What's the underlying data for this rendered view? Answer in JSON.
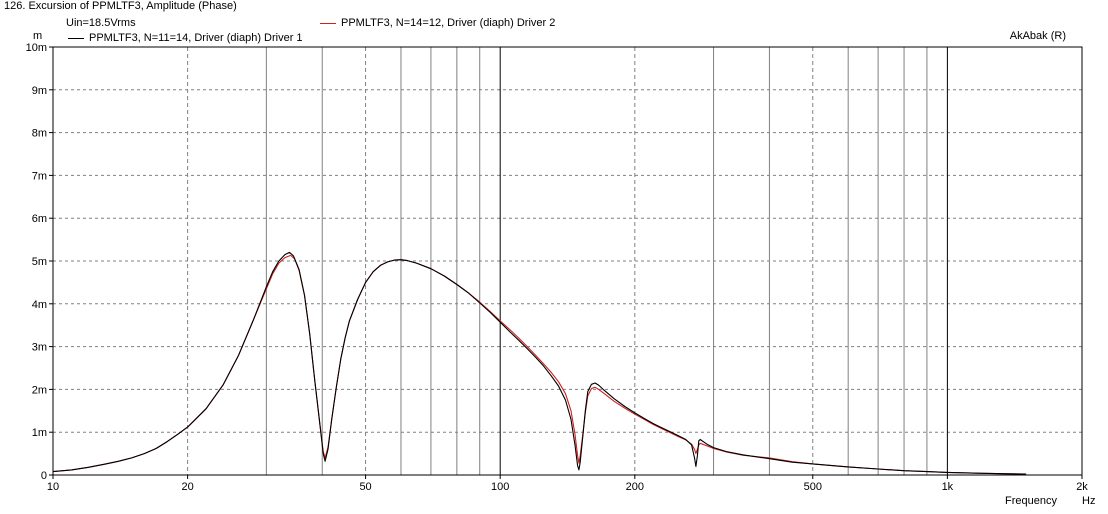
{
  "window": {
    "title": "126. Excursion of PPMLTF3, Amplitude (Phase)"
  },
  "header": {
    "vin": "Uin=18.5Vrms",
    "brand": "AkAbak (R)",
    "y_unit": "m",
    "x_unit_label": "Frequency",
    "x_unit": "Hz"
  },
  "colors": {
    "driver1": "#000000",
    "driver2": "#d02020",
    "grid": "#808080",
    "decade": "#000000"
  },
  "chart_data": {
    "type": "line",
    "title": "Excursion of PPMLTF3, Amplitude (Phase)",
    "xscale": "log",
    "xlim": [
      10,
      2000
    ],
    "ylim": [
      0,
      10
    ],
    "yunit": "m",
    "xlabel": "Frequency",
    "xunit": "Hz",
    "grid": true,
    "legend": "top-left",
    "x_ticks": [
      {
        "value": 10,
        "label": "10"
      },
      {
        "value": 20,
        "label": "20"
      },
      {
        "value": 50,
        "label": "50"
      },
      {
        "value": 100,
        "label": "100"
      },
      {
        "value": 200,
        "label": "200"
      },
      {
        "value": 500,
        "label": "500"
      },
      {
        "value": 1000,
        "label": "1k"
      },
      {
        "value": 2000,
        "label": "2k"
      }
    ],
    "y_ticks": [
      {
        "value": 0,
        "label": "0"
      },
      {
        "value": 1,
        "label": "1m"
      },
      {
        "value": 2,
        "label": "2m"
      },
      {
        "value": 3,
        "label": "3m"
      },
      {
        "value": 4,
        "label": "4m"
      },
      {
        "value": 5,
        "label": "5m"
      },
      {
        "value": 6,
        "label": "6m"
      },
      {
        "value": 7,
        "label": "7m"
      },
      {
        "value": 8,
        "label": "8m"
      },
      {
        "value": 9,
        "label": "9m"
      },
      {
        "value": 10,
        "label": "10m"
      }
    ],
    "series": [
      {
        "name": "PPMLTF3, N=11=14, Driver (diaph) Driver 1",
        "color": "#000000",
        "points": [
          [
            10,
            0.08
          ],
          [
            11,
            0.12
          ],
          [
            12,
            0.18
          ],
          [
            13,
            0.25
          ],
          [
            14,
            0.32
          ],
          [
            15,
            0.4
          ],
          [
            16,
            0.5
          ],
          [
            17,
            0.62
          ],
          [
            18,
            0.78
          ],
          [
            19,
            0.95
          ],
          [
            20,
            1.12
          ],
          [
            22,
            1.55
          ],
          [
            24,
            2.1
          ],
          [
            26,
            2.8
          ],
          [
            28,
            3.6
          ],
          [
            30,
            4.4
          ],
          [
            31,
            4.75
          ],
          [
            32,
            5.0
          ],
          [
            33,
            5.15
          ],
          [
            33.8,
            5.2
          ],
          [
            34.5,
            5.12
          ],
          [
            35.5,
            4.8
          ],
          [
            36.5,
            4.2
          ],
          [
            37.5,
            3.3
          ],
          [
            38.5,
            2.2
          ],
          [
            39.5,
            1.2
          ],
          [
            40.2,
            0.5
          ],
          [
            40.6,
            0.32
          ],
          [
            41.2,
            0.6
          ],
          [
            42,
            1.3
          ],
          [
            43,
            2.05
          ],
          [
            44,
            2.7
          ],
          [
            45,
            3.2
          ],
          [
            46,
            3.6
          ],
          [
            48,
            4.1
          ],
          [
            50,
            4.5
          ],
          [
            52,
            4.75
          ],
          [
            54,
            4.9
          ],
          [
            56,
            4.98
          ],
          [
            58,
            5.02
          ],
          [
            60,
            5.03
          ],
          [
            62,
            5.01
          ],
          [
            65,
            4.95
          ],
          [
            70,
            4.82
          ],
          [
            75,
            4.65
          ],
          [
            80,
            4.45
          ],
          [
            85,
            4.25
          ],
          [
            90,
            4.02
          ],
          [
            95,
            3.8
          ],
          [
            100,
            3.57
          ],
          [
            105,
            3.35
          ],
          [
            110,
            3.15
          ],
          [
            115,
            2.95
          ],
          [
            120,
            2.75
          ],
          [
            125,
            2.55
          ],
          [
            130,
            2.32
          ],
          [
            135,
            2.08
          ],
          [
            140,
            1.75
          ],
          [
            144,
            1.3
          ],
          [
            147,
            0.7
          ],
          [
            149,
            0.22
          ],
          [
            150,
            0.12
          ],
          [
            151,
            0.3
          ],
          [
            153,
            0.9
          ],
          [
            155,
            1.5
          ],
          [
            157,
            1.95
          ],
          [
            160,
            2.12
          ],
          [
            163,
            2.15
          ],
          [
            166,
            2.1
          ],
          [
            170,
            2.0
          ],
          [
            180,
            1.78
          ],
          [
            190,
            1.6
          ],
          [
            200,
            1.45
          ],
          [
            210,
            1.32
          ],
          [
            220,
            1.2
          ],
          [
            230,
            1.1
          ],
          [
            240,
            1.01
          ],
          [
            250,
            0.92
          ],
          [
            260,
            0.83
          ],
          [
            268,
            0.7
          ],
          [
            272,
            0.4
          ],
          [
            274,
            0.2
          ],
          [
            276,
            0.45
          ],
          [
            278,
            0.8
          ],
          [
            280,
            0.83
          ],
          [
            290,
            0.72
          ],
          [
            300,
            0.64
          ],
          [
            320,
            0.55
          ],
          [
            350,
            0.47
          ],
          [
            400,
            0.38
          ],
          [
            450,
            0.3
          ],
          [
            500,
            0.26
          ],
          [
            600,
            0.19
          ],
          [
            700,
            0.14
          ],
          [
            800,
            0.1
          ],
          [
            900,
            0.08
          ],
          [
            1000,
            0.06
          ],
          [
            1200,
            0.04
          ],
          [
            1500,
            0.02
          ]
        ]
      },
      {
        "name": "PPMLTF3, N=14=12, Driver (diaph) Driver 2",
        "color": "#d02020",
        "points": [
          [
            10,
            0.08
          ],
          [
            11,
            0.12
          ],
          [
            12,
            0.18
          ],
          [
            13,
            0.25
          ],
          [
            14,
            0.32
          ],
          [
            15,
            0.4
          ],
          [
            16,
            0.5
          ],
          [
            17,
            0.62
          ],
          [
            18,
            0.78
          ],
          [
            19,
            0.95
          ],
          [
            20,
            1.12
          ],
          [
            22,
            1.55
          ],
          [
            24,
            2.1
          ],
          [
            26,
            2.8
          ],
          [
            28,
            3.6
          ],
          [
            30,
            4.35
          ],
          [
            31,
            4.7
          ],
          [
            32,
            4.95
          ],
          [
            33,
            5.08
          ],
          [
            34,
            5.13
          ],
          [
            34.7,
            5.05
          ],
          [
            35.5,
            4.78
          ],
          [
            36.5,
            4.2
          ],
          [
            37.5,
            3.3
          ],
          [
            38.5,
            2.2
          ],
          [
            39.5,
            1.2
          ],
          [
            40.2,
            0.55
          ],
          [
            40.6,
            0.4
          ],
          [
            41.2,
            0.65
          ],
          [
            42,
            1.3
          ],
          [
            43,
            2.05
          ],
          [
            44,
            2.7
          ],
          [
            45,
            3.2
          ],
          [
            46,
            3.6
          ],
          [
            48,
            4.1
          ],
          [
            50,
            4.5
          ],
          [
            52,
            4.75
          ],
          [
            54,
            4.9
          ],
          [
            56,
            4.98
          ],
          [
            58,
            5.02
          ],
          [
            60,
            5.03
          ],
          [
            62,
            5.01
          ],
          [
            65,
            4.95
          ],
          [
            70,
            4.82
          ],
          [
            75,
            4.65
          ],
          [
            80,
            4.45
          ],
          [
            85,
            4.25
          ],
          [
            90,
            4.04
          ],
          [
            95,
            3.82
          ],
          [
            100,
            3.6
          ],
          [
            105,
            3.4
          ],
          [
            110,
            3.2
          ],
          [
            115,
            3.0
          ],
          [
            120,
            2.8
          ],
          [
            125,
            2.6
          ],
          [
            130,
            2.4
          ],
          [
            135,
            2.18
          ],
          [
            140,
            1.9
          ],
          [
            144,
            1.5
          ],
          [
            147,
            0.95
          ],
          [
            149,
            0.45
          ],
          [
            150,
            0.28
          ],
          [
            151,
            0.45
          ],
          [
            153,
            0.95
          ],
          [
            155,
            1.45
          ],
          [
            157,
            1.85
          ],
          [
            160,
            2.02
          ],
          [
            163,
            2.05
          ],
          [
            166,
            2.0
          ],
          [
            170,
            1.92
          ],
          [
            180,
            1.72
          ],
          [
            190,
            1.56
          ],
          [
            200,
            1.42
          ],
          [
            210,
            1.3
          ],
          [
            220,
            1.18
          ],
          [
            230,
            1.08
          ],
          [
            240,
            0.99
          ],
          [
            250,
            0.9
          ],
          [
            260,
            0.82
          ],
          [
            268,
            0.72
          ],
          [
            272,
            0.6
          ],
          [
            274,
            0.5
          ],
          [
            276,
            0.6
          ],
          [
            278,
            0.7
          ],
          [
            280,
            0.74
          ],
          [
            290,
            0.68
          ],
          [
            300,
            0.62
          ],
          [
            320,
            0.54
          ],
          [
            350,
            0.46
          ],
          [
            400,
            0.4
          ],
          [
            450,
            0.31
          ],
          [
            500,
            0.26
          ],
          [
            600,
            0.19
          ],
          [
            700,
            0.14
          ],
          [
            800,
            0.1
          ],
          [
            900,
            0.08
          ],
          [
            1000,
            0.06
          ],
          [
            1200,
            0.04
          ],
          [
            1500,
            0.02
          ]
        ]
      }
    ]
  }
}
